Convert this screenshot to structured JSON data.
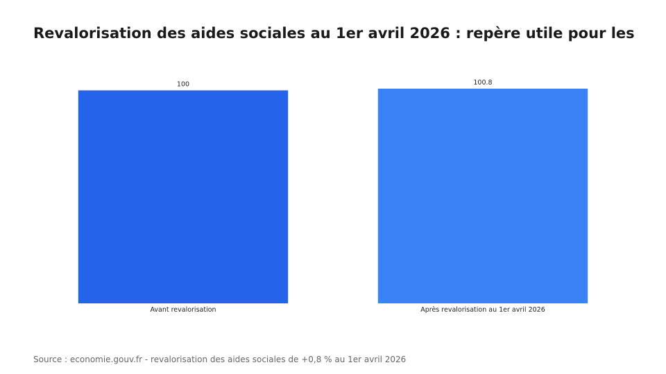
{
  "chart_data": {
    "type": "bar",
    "title": "Revalorisation des aides sociales au 1er avril 2026 : repère utile pour les",
    "categories": [
      "Avant revalorisation",
      "Après revalorisation au 1er avril 2026"
    ],
    "values": [
      100,
      100.8
    ],
    "data_labels": [
      "100",
      "100.8"
    ],
    "colors": [
      "#2563eb",
      "#3b82f6"
    ],
    "xlabel": "",
    "ylabel": "",
    "ylim": [
      0,
      100.8
    ],
    "grid": false,
    "legend": "none"
  },
  "source": "Source : economie.gouv.fr - revalorisation des aides sociales de +0,8 % au 1er avril 2026"
}
